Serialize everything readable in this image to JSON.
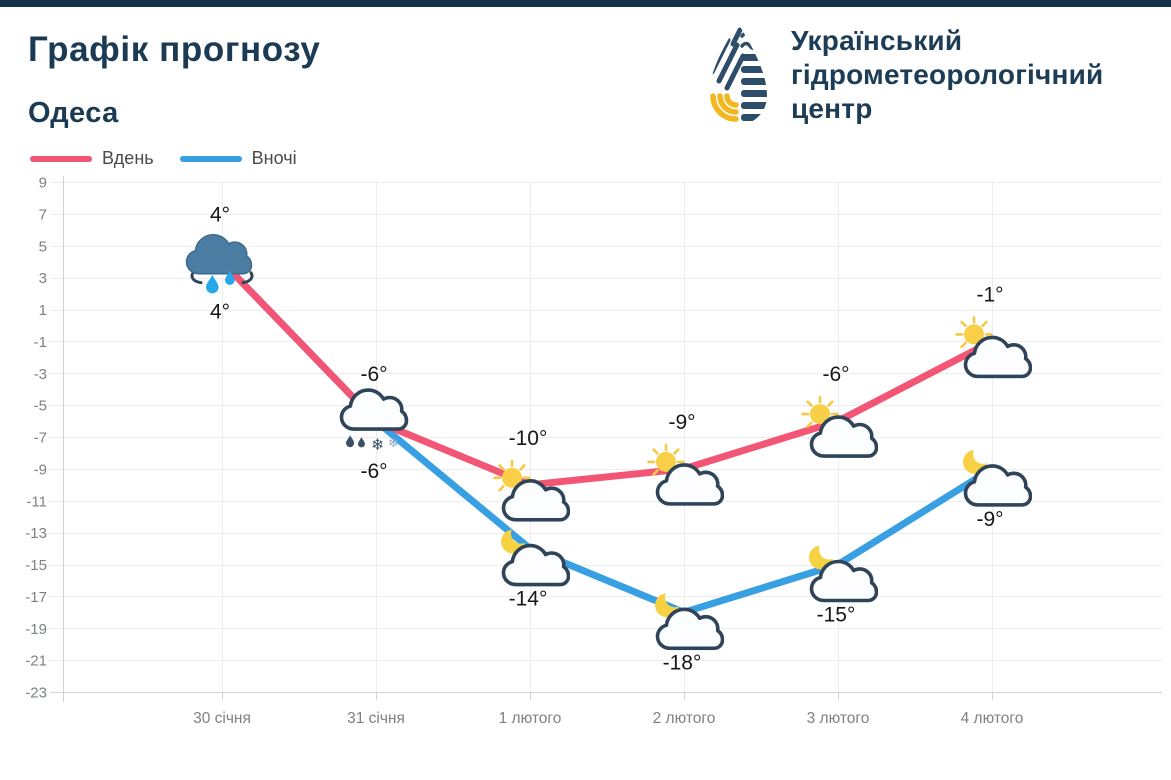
{
  "window": {
    "top_bar_color": "#17334a"
  },
  "header": {
    "title": "Графік прогнозу",
    "city": "Одеса"
  },
  "logo": {
    "org_name_lines": [
      "Український",
      "гідрометеорологічний",
      "центр"
    ],
    "navy": "#2e4d68",
    "yellow": "#f3b71f"
  },
  "legend": [
    {
      "label": "Вдень",
      "color": "#f35575"
    },
    {
      "label": "Вночі",
      "color": "#38a0e2"
    }
  ],
  "chart_data": {
    "type": "line",
    "title": "Графік прогнозу — Одеса",
    "categories": [
      "30 січня",
      "31 січня",
      "1 лютого",
      "2 лютого",
      "3 лютого",
      "4 лютого"
    ],
    "series": [
      {
        "name": "Вдень",
        "color": "#f35575",
        "values": [
          4,
          -6,
          -10,
          -9,
          -6,
          -1
        ],
        "point_labels": [
          "4°",
          "-6°",
          "-10°",
          "-9°",
          "-6°",
          "-1°"
        ],
        "icons": [
          "rain",
          "rain-snow",
          "sun-cloud",
          "sun-cloud",
          "sun-cloud",
          "sun-cloud"
        ]
      },
      {
        "name": "Вночі",
        "color": "#38a0e2",
        "values": [
          4,
          -6,
          -14,
          -18,
          -15,
          -9
        ],
        "point_labels": [
          "4°",
          "-6°",
          "-14°",
          "-18°",
          "-15°",
          "-9°"
        ],
        "icons": [
          null,
          null,
          "moon-cloud",
          "moon-cloud",
          "moon-cloud",
          "moon-cloud"
        ]
      }
    ],
    "ylim": [
      -23,
      9
    ],
    "yticks": [
      9,
      7,
      5,
      3,
      1,
      -1,
      -3,
      -5,
      -7,
      -9,
      -11,
      -13,
      -15,
      -17,
      -19,
      -21,
      -23
    ],
    "grid": true,
    "legend_position": "top-left",
    "xlabel": "",
    "ylabel": ""
  }
}
